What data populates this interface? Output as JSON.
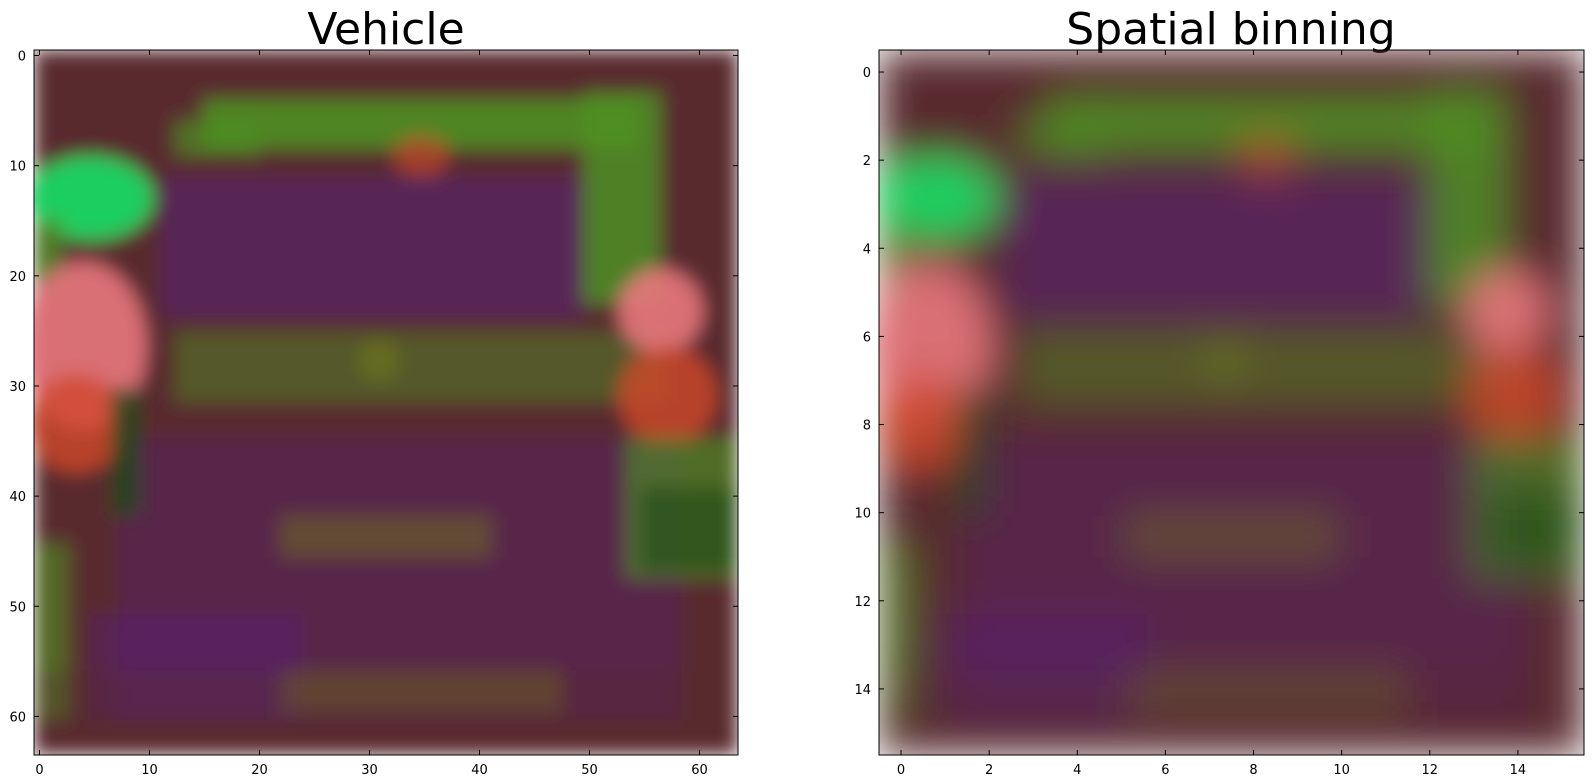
{
  "panels": [
    {
      "title": "Vehicle",
      "x_range": [
        -0.5,
        63.5
      ],
      "y_range": [
        -0.5,
        63.5
      ],
      "x_ticks": [
        0,
        10,
        20,
        30,
        40,
        50,
        60
      ],
      "y_ticks": [
        0,
        10,
        20,
        30,
        40,
        50,
        60
      ],
      "image_kind": "photo",
      "grid": false
    },
    {
      "title": "Spatial binning",
      "x_range": [
        -0.5,
        15.5
      ],
      "y_range": [
        -0.5,
        15.5
      ],
      "x_ticks": [
        0,
        2,
        4,
        6,
        8,
        10,
        12,
        14
      ],
      "y_ticks": [
        0,
        2,
        4,
        6,
        8,
        10,
        12,
        14
      ],
      "image_kind": "binned",
      "grid": false
    }
  ],
  "colors": {
    "base": "#582c2e",
    "green": "#4f8f24",
    "bright_green": "#19d662",
    "pink": "#e8787c",
    "red": "#d0482c",
    "purple": "#5a207a",
    "dark_green": "#1c4a1a",
    "olive": "#707a20"
  }
}
